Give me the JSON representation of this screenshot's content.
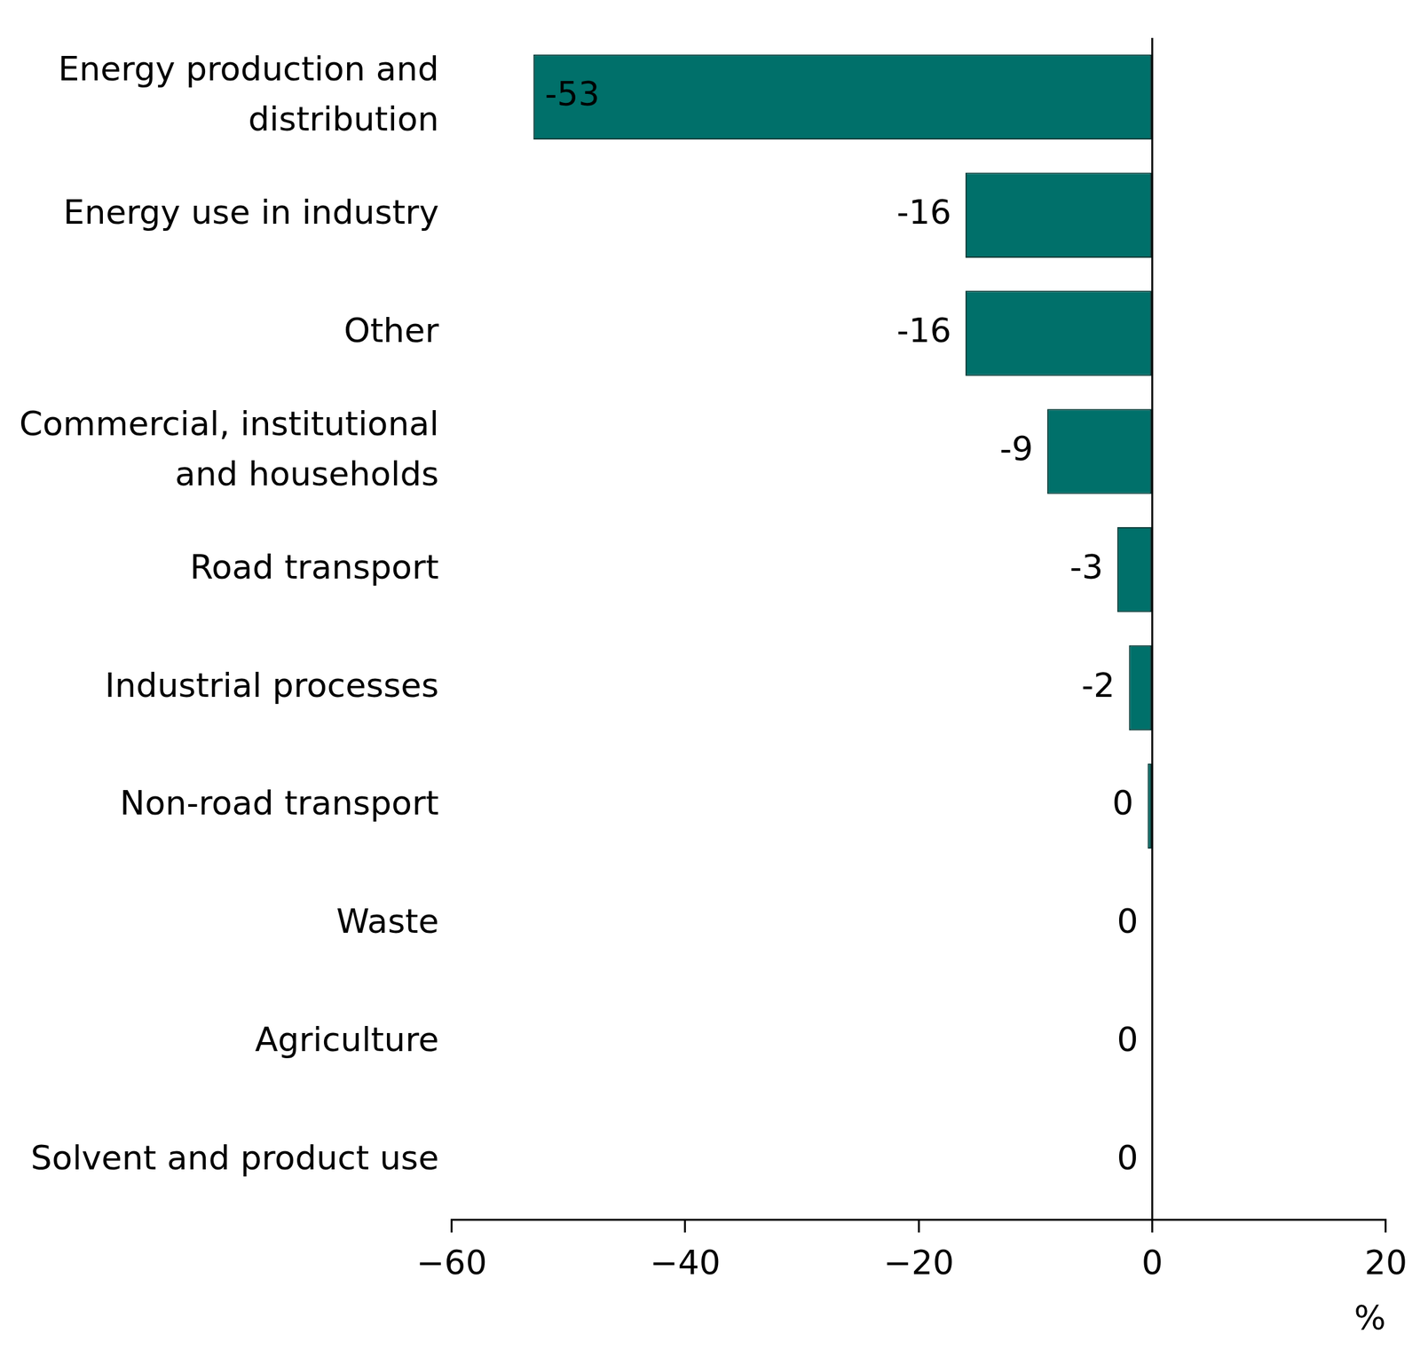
{
  "chart_data": {
    "type": "bar",
    "orientation": "horizontal",
    "categories": [
      "Energy production and distribution",
      "Energy use in industry",
      "Other",
      "Commercial, institutional and households",
      "Road transport",
      "Industrial processes",
      "Non-road transport",
      "Waste",
      "Agriculture",
      "Solvent and product use"
    ],
    "values": [
      -53,
      -16,
      -16,
      -9,
      -3,
      -2,
      -0.4,
      0,
      0,
      0
    ],
    "value_labels": [
      "-53",
      "-16",
      "-16",
      "-9",
      "-3",
      "-2",
      "0",
      "0",
      "0",
      "0"
    ],
    "data_labels": true,
    "color": "#00706a",
    "xlabel": "%",
    "xlim": [
      -60,
      20
    ],
    "xticks": [
      {
        "value": -60,
        "label": "−60"
      },
      {
        "value": -40,
        "label": "−40"
      },
      {
        "value": -20,
        "label": "−20"
      },
      0,
      20
    ],
    "grid": false
  }
}
